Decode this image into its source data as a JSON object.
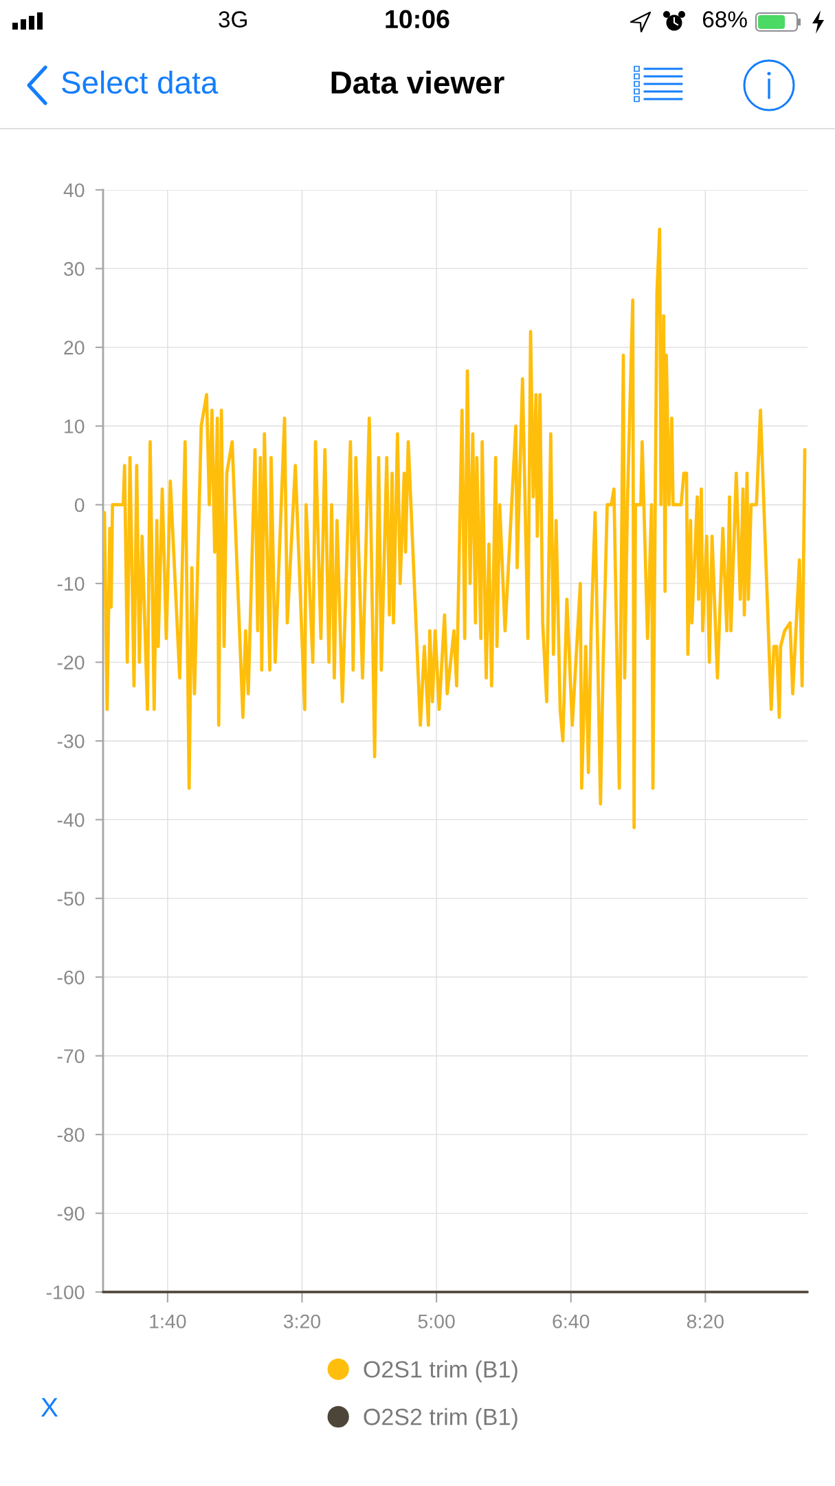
{
  "chart_data": {
    "type": "line",
    "title": "Data viewer",
    "annotations": [
      "Select data",
      "3G",
      "10:06",
      "68%",
      "X"
    ],
    "xlim": [
      52,
      576
    ],
    "xticks": [
      {
        "value": 100,
        "label": "1:40"
      },
      {
        "value": 200,
        "label": "3:20"
      },
      {
        "value": 300,
        "label": "5:00"
      },
      {
        "value": 400,
        "label": "6:40"
      },
      {
        "value": 500,
        "label": "8:20"
      }
    ],
    "ylim": [
      -100,
      40
    ],
    "yticks": [
      -100,
      -90,
      -80,
      -70,
      -60,
      -50,
      -40,
      -30,
      -20,
      -10,
      0,
      10,
      20,
      30,
      40
    ],
    "grid": true,
    "legend": "bottom",
    "line_style": "solid",
    "series": [
      {
        "name": "O2S1 trim (B1)",
        "color": "#ffbe0b",
        "x": [
          53,
          55,
          57,
          58,
          59,
          67,
          68,
          70,
          72,
          75,
          77,
          79,
          81,
          85,
          87,
          90,
          92,
          93,
          96,
          99,
          102,
          109,
          113,
          116,
          118,
          120,
          125,
          129,
          131,
          133,
          135,
          137,
          138,
          140,
          142,
          144,
          148,
          156,
          158,
          160,
          165,
          167,
          169,
          170,
          172,
          176,
          177,
          180,
          187,
          189,
          195,
          202,
          203,
          208,
          210,
          214,
          217,
          220,
          222,
          224,
          226,
          230,
          236,
          238,
          240,
          245,
          250,
          254,
          257,
          259,
          263,
          265,
          267,
          268,
          271,
          273,
          276,
          277,
          279,
          288,
          291,
          294,
          295,
          297,
          299,
          302,
          306,
          308,
          313,
          315,
          319,
          321,
          323,
          325,
          327,
          329,
          330,
          333,
          334,
          337,
          339,
          341,
          344,
          345,
          347,
          351,
          359,
          360,
          364,
          368,
          370,
          372,
          374,
          375,
          377,
          379,
          382,
          385,
          387,
          389,
          392,
          394,
          397,
          401,
          407,
          408,
          411,
          413,
          415,
          418,
          422,
          424,
          427,
          430,
          432,
          434,
          436,
          439,
          440,
          442,
          446,
          447,
          448,
          452,
          453,
          457,
          460,
          461,
          464,
          466,
          467,
          469,
          470,
          471,
          473,
          475,
          476,
          482,
          484,
          486,
          487,
          489,
          490,
          494,
          495,
          497,
          498,
          501,
          503,
          505,
          509,
          513,
          516,
          518,
          519,
          523,
          526,
          528,
          529,
          531,
          532,
          534,
          538,
          541,
          549,
          551,
          553,
          555,
          556,
          559,
          563,
          565,
          570,
          572,
          574
        ],
        "values": [
          -1,
          -26,
          -3,
          -13,
          0,
          0,
          5,
          -20,
          6,
          -23,
          5,
          -20,
          -4,
          -26,
          8,
          -26,
          -2,
          -18,
          2,
          -17,
          3,
          -22,
          8,
          -36,
          -8,
          -24,
          10,
          14,
          0,
          12,
          -6,
          11,
          -28,
          12,
          -18,
          4,
          8,
          -27,
          -16,
          -24,
          7,
          -16,
          6,
          -21,
          9,
          -21,
          6,
          -20,
          11,
          -15,
          5,
          -26,
          0,
          -20,
          8,
          -17,
          7,
          -20,
          0,
          -22,
          -2,
          -25,
          8,
          -21,
          6,
          -22,
          11,
          -32,
          6,
          -21,
          6,
          -14,
          4,
          -15,
          9,
          -10,
          4,
          -6,
          8,
          -28,
          -18,
          -28,
          -16,
          -25,
          -16,
          -26,
          -14,
          -24,
          -16,
          -23,
          12,
          -17,
          17,
          -10,
          9,
          -15,
          6,
          -17,
          8,
          -22,
          -5,
          -23,
          6,
          -18,
          0,
          -16,
          10,
          -8,
          16,
          -17,
          22,
          1,
          14,
          -4,
          14,
          -15,
          -25,
          9,
          -19,
          -2,
          -26,
          -30,
          -12,
          -28,
          -10,
          -36,
          -18,
          -34,
          -16,
          -1,
          -38,
          -20,
          0,
          0,
          2,
          -17,
          -36,
          19,
          -22,
          0,
          26,
          -41,
          0,
          0,
          8,
          -17,
          0,
          -36,
          27,
          35,
          0,
          24,
          -11,
          19,
          0,
          11,
          0,
          0,
          4,
          4,
          -19,
          -2,
          -15,
          1,
          -12,
          2,
          -16,
          -4,
          -20,
          -4,
          -22,
          -3,
          -16,
          1,
          -16,
          4,
          -12,
          2,
          -14,
          4,
          -12,
          0,
          0,
          12,
          -26,
          -18,
          -18,
          -27,
          -18,
          -16,
          -15,
          -24,
          -7,
          -23,
          7
        ]
      },
      {
        "name": "O2S2 trim (B1)",
        "color": "#4c4538",
        "x": [
          52,
          576
        ],
        "values": [
          -100,
          -100
        ]
      }
    ]
  }
}
